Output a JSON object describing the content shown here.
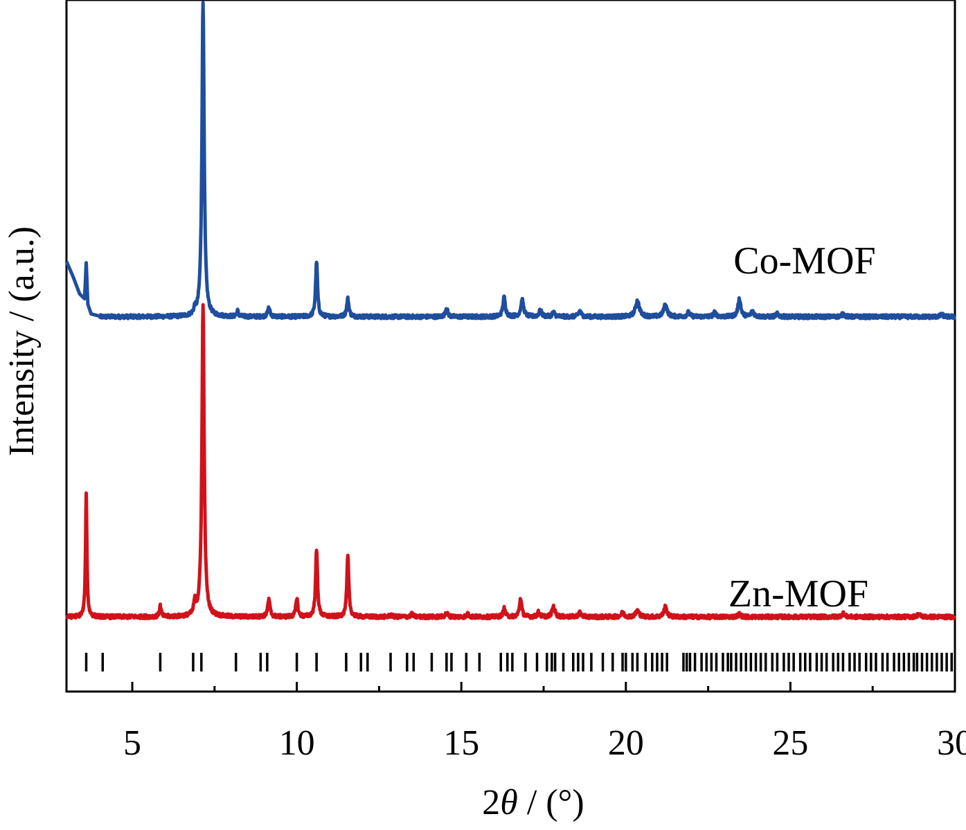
{
  "chart_data": {
    "type": "line",
    "xlabel": "2θ / (°)",
    "xlabel_prefix": "2",
    "xlabel_theta": "θ",
    "xlabel_suffix": " / (°)",
    "ylabel": "Intensity / (a.u.)",
    "xlim": [
      3,
      30
    ],
    "ylim": [
      0,
      100
    ],
    "x_ticks": [
      5,
      10,
      15,
      20,
      25,
      30
    ],
    "x_tick_labels": [
      "5",
      "10",
      "15",
      "20",
      "25",
      "30"
    ],
    "y_ticks_shown": false,
    "grid": false,
    "series": [
      {
        "name": "Co-MOF",
        "color": "#1f4e9c",
        "baseline": 54.2,
        "start": [
          [
            3.0,
            62.2
          ],
          [
            3.2,
            60.0
          ],
          [
            3.4,
            57.5
          ],
          [
            3.55,
            56.8
          ],
          [
            3.6,
            62.0
          ],
          [
            3.65,
            56.0
          ],
          [
            3.75,
            54.6
          ],
          [
            4.0,
            54.3
          ]
        ],
        "peaks": [
          {
            "x": 3.6,
            "h": 7.5,
            "w": 0.025
          },
          {
            "x": 6.9,
            "h": 0.8,
            "w": 0.03
          },
          {
            "x": 7.15,
            "h": 45.5,
            "w": 0.04
          },
          {
            "x": 8.2,
            "h": 0.8,
            "w": 0.03
          },
          {
            "x": 9.15,
            "h": 1.3,
            "w": 0.04
          },
          {
            "x": 10.6,
            "h": 8.0,
            "w": 0.035
          },
          {
            "x": 11.55,
            "h": 2.6,
            "w": 0.04
          },
          {
            "x": 14.55,
            "h": 1.3,
            "w": 0.04
          },
          {
            "x": 16.3,
            "h": 2.8,
            "w": 0.045
          },
          {
            "x": 16.85,
            "h": 2.4,
            "w": 0.05
          },
          {
            "x": 17.4,
            "h": 0.9,
            "w": 0.05
          },
          {
            "x": 17.8,
            "h": 0.6,
            "w": 0.05
          },
          {
            "x": 18.6,
            "h": 0.8,
            "w": 0.05
          },
          {
            "x": 20.35,
            "h": 2.3,
            "w": 0.07
          },
          {
            "x": 21.2,
            "h": 1.8,
            "w": 0.06
          },
          {
            "x": 21.9,
            "h": 0.6,
            "w": 0.05
          },
          {
            "x": 22.7,
            "h": 0.6,
            "w": 0.05
          },
          {
            "x": 23.45,
            "h": 2.6,
            "w": 0.05
          },
          {
            "x": 23.85,
            "h": 0.8,
            "w": 0.05
          },
          {
            "x": 24.6,
            "h": 0.4,
            "w": 0.05
          },
          {
            "x": 26.6,
            "h": 0.4,
            "w": 0.05
          },
          {
            "x": 29.6,
            "h": 0.3,
            "w": 0.05
          }
        ]
      },
      {
        "name": "Zn-MOF",
        "color": "#d0121b",
        "baseline": 10.8,
        "start": [],
        "peaks": [
          {
            "x": 3.6,
            "h": 17.8,
            "w": 0.025
          },
          {
            "x": 5.85,
            "h": 1.6,
            "w": 0.03
          },
          {
            "x": 6.9,
            "h": 1.8,
            "w": 0.035
          },
          {
            "x": 7.15,
            "h": 45.0,
            "w": 0.04
          },
          {
            "x": 9.15,
            "h": 2.5,
            "w": 0.04
          },
          {
            "x": 10.0,
            "h": 2.7,
            "w": 0.035
          },
          {
            "x": 10.6,
            "h": 9.7,
            "w": 0.035
          },
          {
            "x": 11.55,
            "h": 8.8,
            "w": 0.035
          },
          {
            "x": 12.85,
            "h": 0.3,
            "w": 0.04
          },
          {
            "x": 13.5,
            "h": 0.4,
            "w": 0.04
          },
          {
            "x": 14.55,
            "h": 0.6,
            "w": 0.04
          },
          {
            "x": 15.2,
            "h": 0.4,
            "w": 0.04
          },
          {
            "x": 16.3,
            "h": 1.2,
            "w": 0.04
          },
          {
            "x": 16.8,
            "h": 2.7,
            "w": 0.04
          },
          {
            "x": 17.35,
            "h": 0.7,
            "w": 0.04
          },
          {
            "x": 17.8,
            "h": 1.5,
            "w": 0.05
          },
          {
            "x": 18.6,
            "h": 0.6,
            "w": 0.05
          },
          {
            "x": 19.9,
            "h": 0.6,
            "w": 0.05
          },
          {
            "x": 20.35,
            "h": 0.9,
            "w": 0.06
          },
          {
            "x": 21.2,
            "h": 1.5,
            "w": 0.05
          },
          {
            "x": 23.45,
            "h": 0.4,
            "w": 0.05
          },
          {
            "x": 26.6,
            "h": 0.5,
            "w": 0.05
          },
          {
            "x": 28.9,
            "h": 0.4,
            "w": 0.05
          }
        ]
      }
    ],
    "reference_ticks": [
      3.6,
      4.1,
      5.85,
      6.85,
      7.1,
      8.15,
      8.9,
      9.1,
      10.0,
      10.6,
      11.5,
      11.95,
      12.15,
      12.85,
      13.35,
      13.55,
      14.1,
      14.55,
      14.7,
      15.15,
      15.55,
      16.2,
      16.4,
      16.55,
      16.95,
      17.3,
      17.6,
      17.75,
      17.85,
      18.1,
      18.4,
      18.55,
      18.7,
      18.95,
      19.3,
      19.6,
      19.9,
      20.0,
      20.2,
      20.35,
      20.6,
      20.8,
      20.95,
      21.1,
      21.25,
      21.75,
      21.85,
      21.95,
      22.1,
      22.3,
      22.45,
      22.6,
      22.75,
      22.95,
      23.1,
      23.2,
      23.35,
      23.5,
      23.65,
      23.8,
      23.95,
      24.1,
      24.25,
      24.45,
      24.6,
      24.8,
      24.95,
      25.1,
      25.3,
      25.45,
      25.6,
      25.8,
      25.95,
      26.1,
      26.3,
      26.45,
      26.6,
      26.8,
      26.95,
      27.1,
      27.3,
      27.45,
      27.6,
      27.8,
      27.95,
      28.15,
      28.3,
      28.45,
      28.6,
      28.75,
      28.85,
      29.0,
      29.15,
      29.3,
      29.45,
      29.6,
      29.75,
      29.9
    ]
  }
}
